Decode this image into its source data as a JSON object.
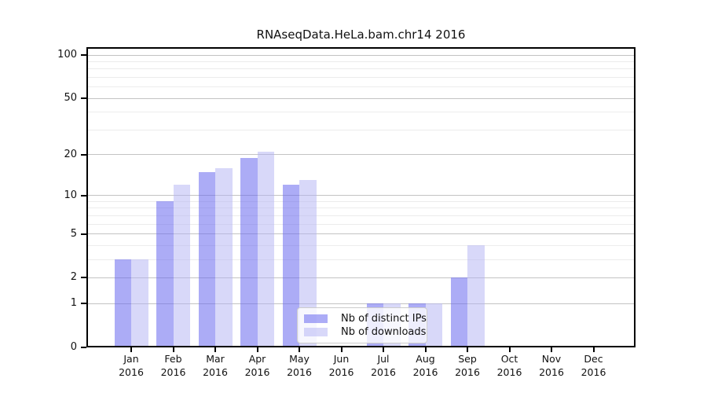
{
  "chart_data": {
    "type": "bar",
    "title": "RNAseqData.HeLa.bam.chr14 2016",
    "categories": [
      "Jan",
      "Feb",
      "Mar",
      "Apr",
      "May",
      "Jun",
      "Jul",
      "Aug",
      "Sep",
      "Oct",
      "Nov",
      "Dec"
    ],
    "x_tick_second_line": "2016",
    "series": [
      {
        "name": "Nb of distinct IPs",
        "color": "rgba(103,103,238,0.55)",
        "values": [
          3,
          9,
          15,
          19,
          12,
          0,
          1,
          1,
          2,
          0,
          0,
          0
        ]
      },
      {
        "name": "Nb of downloads",
        "color": "rgba(178,178,244,0.5)",
        "values": [
          3,
          12,
          16,
          21,
          13,
          0,
          1,
          1,
          4,
          0,
          0,
          0
        ]
      }
    ],
    "y_scale": "log1p",
    "y_major_ticks": [
      0,
      1,
      2,
      5,
      10,
      20,
      50,
      100
    ],
    "y_minor_ticks": [
      3,
      4,
      6,
      7,
      8,
      9,
      30,
      40,
      60,
      70,
      80,
      90
    ],
    "ylim": [
      0,
      113
    ],
    "xlabel": "",
    "ylabel": "",
    "grid": true,
    "legend_position": "inside-bottom-center"
  },
  "colors": {
    "frame": "#000000",
    "major_grid": "#c3c3c3",
    "minor_grid": "#ececec",
    "legend_border": "#cccccc",
    "legend_background": "rgba(255,255,255,0.8)"
  }
}
